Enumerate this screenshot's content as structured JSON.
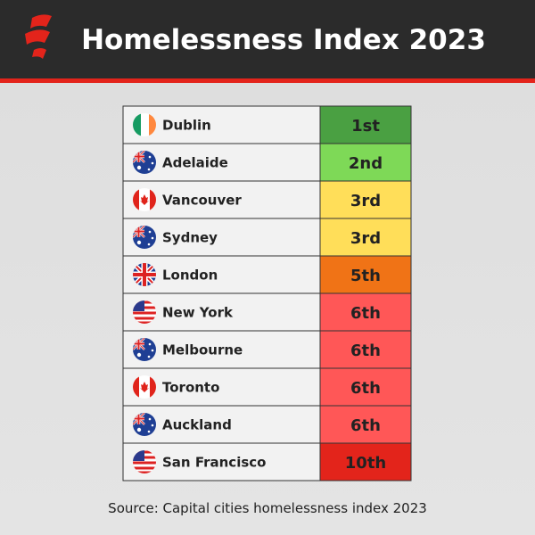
{
  "header": {
    "title": "Homelessness Index 2023"
  },
  "table": {
    "rows": [
      {
        "city": "Dublin",
        "rank": "1st",
        "color": "#4aa042"
      },
      {
        "city": "Adelaide",
        "rank": "2nd",
        "color": "#7ed957"
      },
      {
        "city": "Vancouver",
        "rank": "3rd",
        "color": "#ffde59"
      },
      {
        "city": "Sydney",
        "rank": "3rd",
        "color": "#ffde59"
      },
      {
        "city": "London",
        "rank": "5th",
        "color": "#f07316"
      },
      {
        "city": "New York",
        "rank": "6th",
        "color": "#ff5757"
      },
      {
        "city": "Melbourne",
        "rank": "6th",
        "color": "#ff5757"
      },
      {
        "city": "Toronto",
        "rank": "6th",
        "color": "#ff5757"
      },
      {
        "city": "Auckland",
        "rank": "6th",
        "color": "#ff5757"
      },
      {
        "city": "San Francisco",
        "rank": "10th",
        "color": "#e3241b"
      }
    ]
  },
  "footer": {
    "source": "Source: Capital cities homelessness index 2023"
  }
}
